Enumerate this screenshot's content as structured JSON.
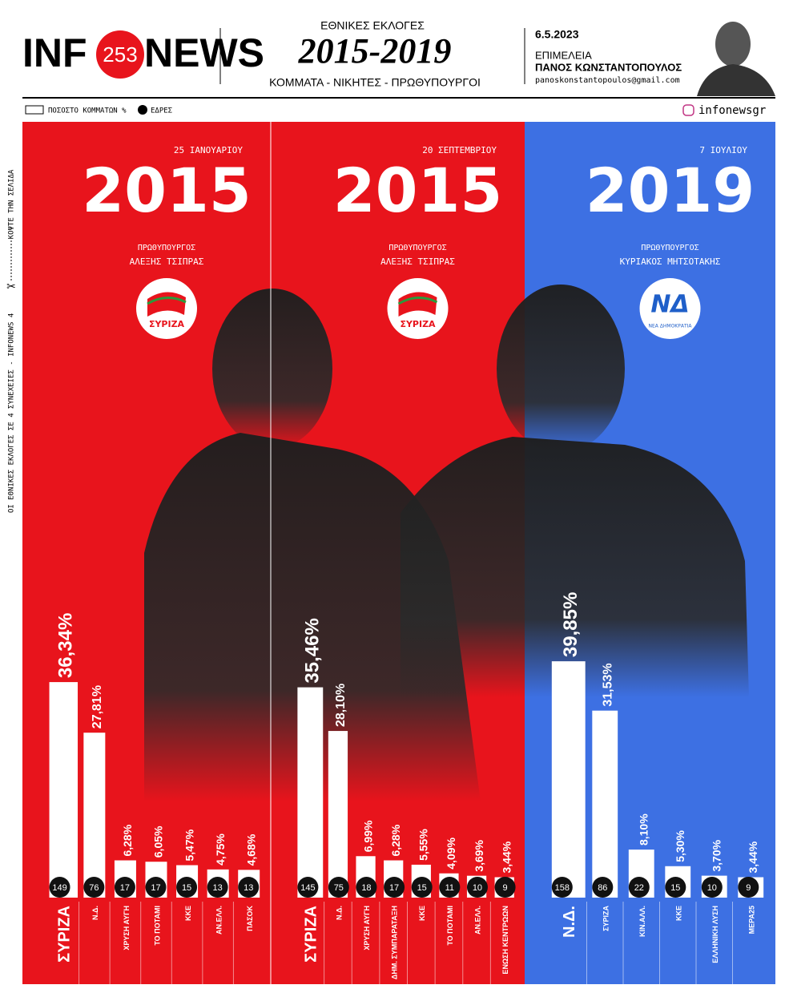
{
  "header": {
    "logo_left": "INF",
    "logo_num": "253",
    "logo_right": "NEWS",
    "kicker": "ΕΘΝΙΚΕΣ ΕΚΛΟΓΕΣ",
    "title": "2015-2019",
    "subtitle": "ΚΟΜΜΑΤΑ - ΝΙΚΗΤΕΣ - ΠΡΩΘΥΠΟΥΡΓΟΙ",
    "date": "6.5.2023",
    "credit_label": "ΕΠΙΜΕΛΕΙΑ",
    "author": "ΠΑΝΟΣ ΚΩΝΣΤΑΝΤΟΠΟΥΛΟΣ",
    "email": "panoskonstantopoulos@gmail.com"
  },
  "legend": {
    "bars": "ΠΟΣΟΣΤΟ ΚΟΜΜΑΤΩΝ %",
    "seats": "ΕΔΡΕΣ",
    "social": "infonewsgr"
  },
  "side": {
    "series_note": "ΟΙ ΕΘΝΙΚΕΣ ΕΚΛΟΓΕΣ ΣΕ 4 ΣΥΝΕΧΕΙΕΣ - INFONEWS 4",
    "cut": "ΚΟΨΤΕ ΤΗΝ ΣΕΛΙΔΑ"
  },
  "chart_data": [
    {
      "type": "bar",
      "date": "25 ΙΑΝΟΥΑΡΙΟΥ",
      "year": "2015",
      "role": "ΠΡΩΘΥΠΟΥΡΓΟΣ",
      "pm": "ΑΛΕΞΗΣ ΤΣΙΠΡΑΣ",
      "logo": "ΣΥΡΙΖΑ",
      "color": "#e8141c",
      "categories": [
        "ΣΥΡΙΖΑ",
        "Ν.Δ.",
        "ΧΡΥΣΗ ΑΥΓΗ",
        "ΤΟ ΠΟΤΑΜΙ",
        "ΚΚΕ",
        "ΑΝ.ΕΛΛ.",
        "ΠΑΣΟΚ"
      ],
      "values": [
        36.34,
        27.81,
        6.28,
        6.05,
        5.47,
        4.75,
        4.68
      ],
      "value_labels": [
        "36,34%",
        "27,81%",
        "6,28%",
        "6,05%",
        "5,47%",
        "4,75%",
        "4,68%"
      ],
      "seats": [
        149,
        76,
        17,
        17,
        15,
        13,
        13
      ]
    },
    {
      "type": "bar",
      "date": "20 ΣΕΠΤΕΜΒΡΙΟΥ",
      "year": "2015",
      "role": "ΠΡΩΘΥΠΟΥΡΓΟΣ",
      "pm": "ΑΛΕΞΗΣ ΤΣΙΠΡΑΣ",
      "logo": "ΣΥΡΙΖΑ",
      "color": "#e8141c",
      "categories": [
        "ΣΥΡΙΖΑ",
        "Ν.Δ.",
        "ΧΡΥΣΗ ΑΥΓΗ",
        "ΔΗΜ. ΣΥΜΠΑΡΑΤΑΞΗ",
        "ΚΚΕ",
        "ΤΟ ΠΟΤΑΜΙ",
        "ΑΝ.ΕΛΛ.",
        "ΕΝΩΣΗ ΚΕΝΤΡΩΩΝ"
      ],
      "values": [
        35.46,
        28.1,
        6.99,
        6.28,
        5.55,
        4.09,
        3.69,
        3.44
      ],
      "value_labels": [
        "35,46%",
        "28,10%",
        "6,99%",
        "6,28%",
        "5,55%",
        "4,09%",
        "3,69%",
        "3,44%"
      ],
      "seats": [
        145,
        75,
        18,
        17,
        15,
        11,
        10,
        9
      ]
    },
    {
      "type": "bar",
      "date": "7 ΙΟΥΛΙΟΥ",
      "year": "2019",
      "role": "ΠΡΩΘΥΠΟΥΡΓΟΣ",
      "pm": "ΚΥΡΙΑΚΟΣ ΜΗΤΣΟΤΑΚΗΣ",
      "logo": "ΝΔ",
      "logo_sub": "ΝΕΑ ΔΗΜΟΚΡΑΤΙΑ",
      "color": "#3d70e3",
      "categories": [
        "Ν.Δ.",
        "ΣΥΡΙΖΑ",
        "ΚΙΝ.ΑΛΛ.",
        "ΚΚΕ",
        "ΕΛΛΗΝΙΚΗ ΛΥΣΗ",
        "ΜΕΡΑ25"
      ],
      "values": [
        39.85,
        31.53,
        8.1,
        5.3,
        3.7,
        3.44
      ],
      "value_labels": [
        "39,85%",
        "31,53%",
        "8,10%",
        "5,30%",
        "3,70%",
        "3,44%"
      ],
      "seats": [
        158,
        86,
        22,
        15,
        10,
        9
      ]
    }
  ]
}
